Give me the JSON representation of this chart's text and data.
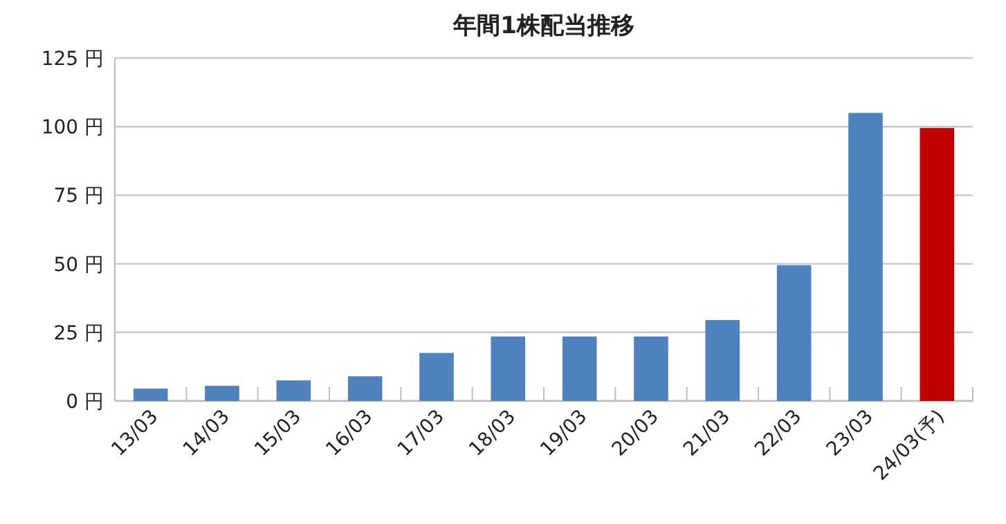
{
  "chart_data": {
    "type": "bar",
    "title": "年間1株配当推移",
    "categories": [
      "13/03",
      "14/03",
      "15/03",
      "16/03",
      "17/03",
      "18/03",
      "19/03",
      "20/03",
      "21/03",
      "22/03",
      "23/03",
      "24/03(予)"
    ],
    "values": [
      4.5,
      5.5,
      7.5,
      9,
      17.5,
      23.5,
      23.5,
      23.5,
      29.5,
      49.5,
      105,
      99.5
    ],
    "colors": [
      "#4f81bd",
      "#4f81bd",
      "#4f81bd",
      "#4f81bd",
      "#4f81bd",
      "#4f81bd",
      "#4f81bd",
      "#4f81bd",
      "#4f81bd",
      "#4f81bd",
      "#4f81bd",
      "#c00000"
    ],
    "ylim": [
      0,
      125
    ],
    "yticks": [
      {
        "value": 0,
        "label": "0 円"
      },
      {
        "value": 25,
        "label": "25 円"
      },
      {
        "value": 50,
        "label": "50 円"
      },
      {
        "value": 75,
        "label": "75 円"
      },
      {
        "value": 100,
        "label": "100 円"
      },
      {
        "value": 125,
        "label": "125 円"
      }
    ],
    "grid": "y"
  }
}
